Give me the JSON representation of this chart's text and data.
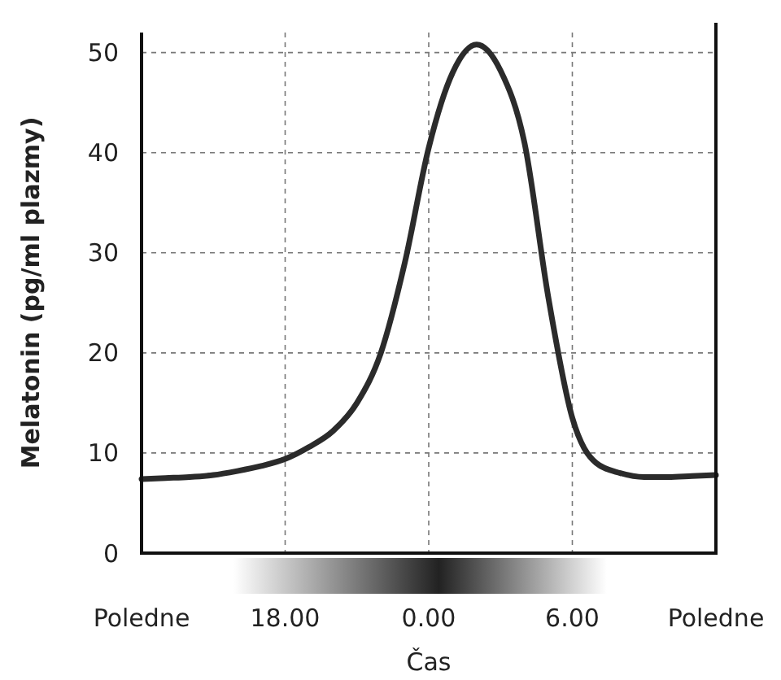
{
  "chart_data": {
    "type": "line",
    "xlabel": "Čas",
    "ylabel": "Melatonin (pg/ml plazmy)",
    "categories": [
      "Poledne",
      null,
      null,
      null,
      null,
      null,
      "18.00",
      null,
      null,
      null,
      null,
      null,
      "0.00",
      null,
      null,
      null,
      null,
      null,
      "6.00",
      null,
      null,
      null,
      null,
      null,
      "Poledne"
    ],
    "series": [
      {
        "color": "#2b2b2b",
        "values": [
          7.4,
          7.5,
          7.6,
          7.8,
          8.2,
          8.7,
          9.4,
          10.6,
          12.2,
          15,
          20,
          29,
          40.5,
          48,
          50.8,
          48.2,
          41,
          25.5,
          13.5,
          9,
          8,
          7.6,
          7.6,
          7.7,
          7.8
        ]
      }
    ],
    "ylim": [
      0,
      52
    ],
    "yticks": [
      0,
      10,
      20,
      30,
      40,
      50
    ],
    "grid": true,
    "marker": "none",
    "line_style": "solid"
  }
}
